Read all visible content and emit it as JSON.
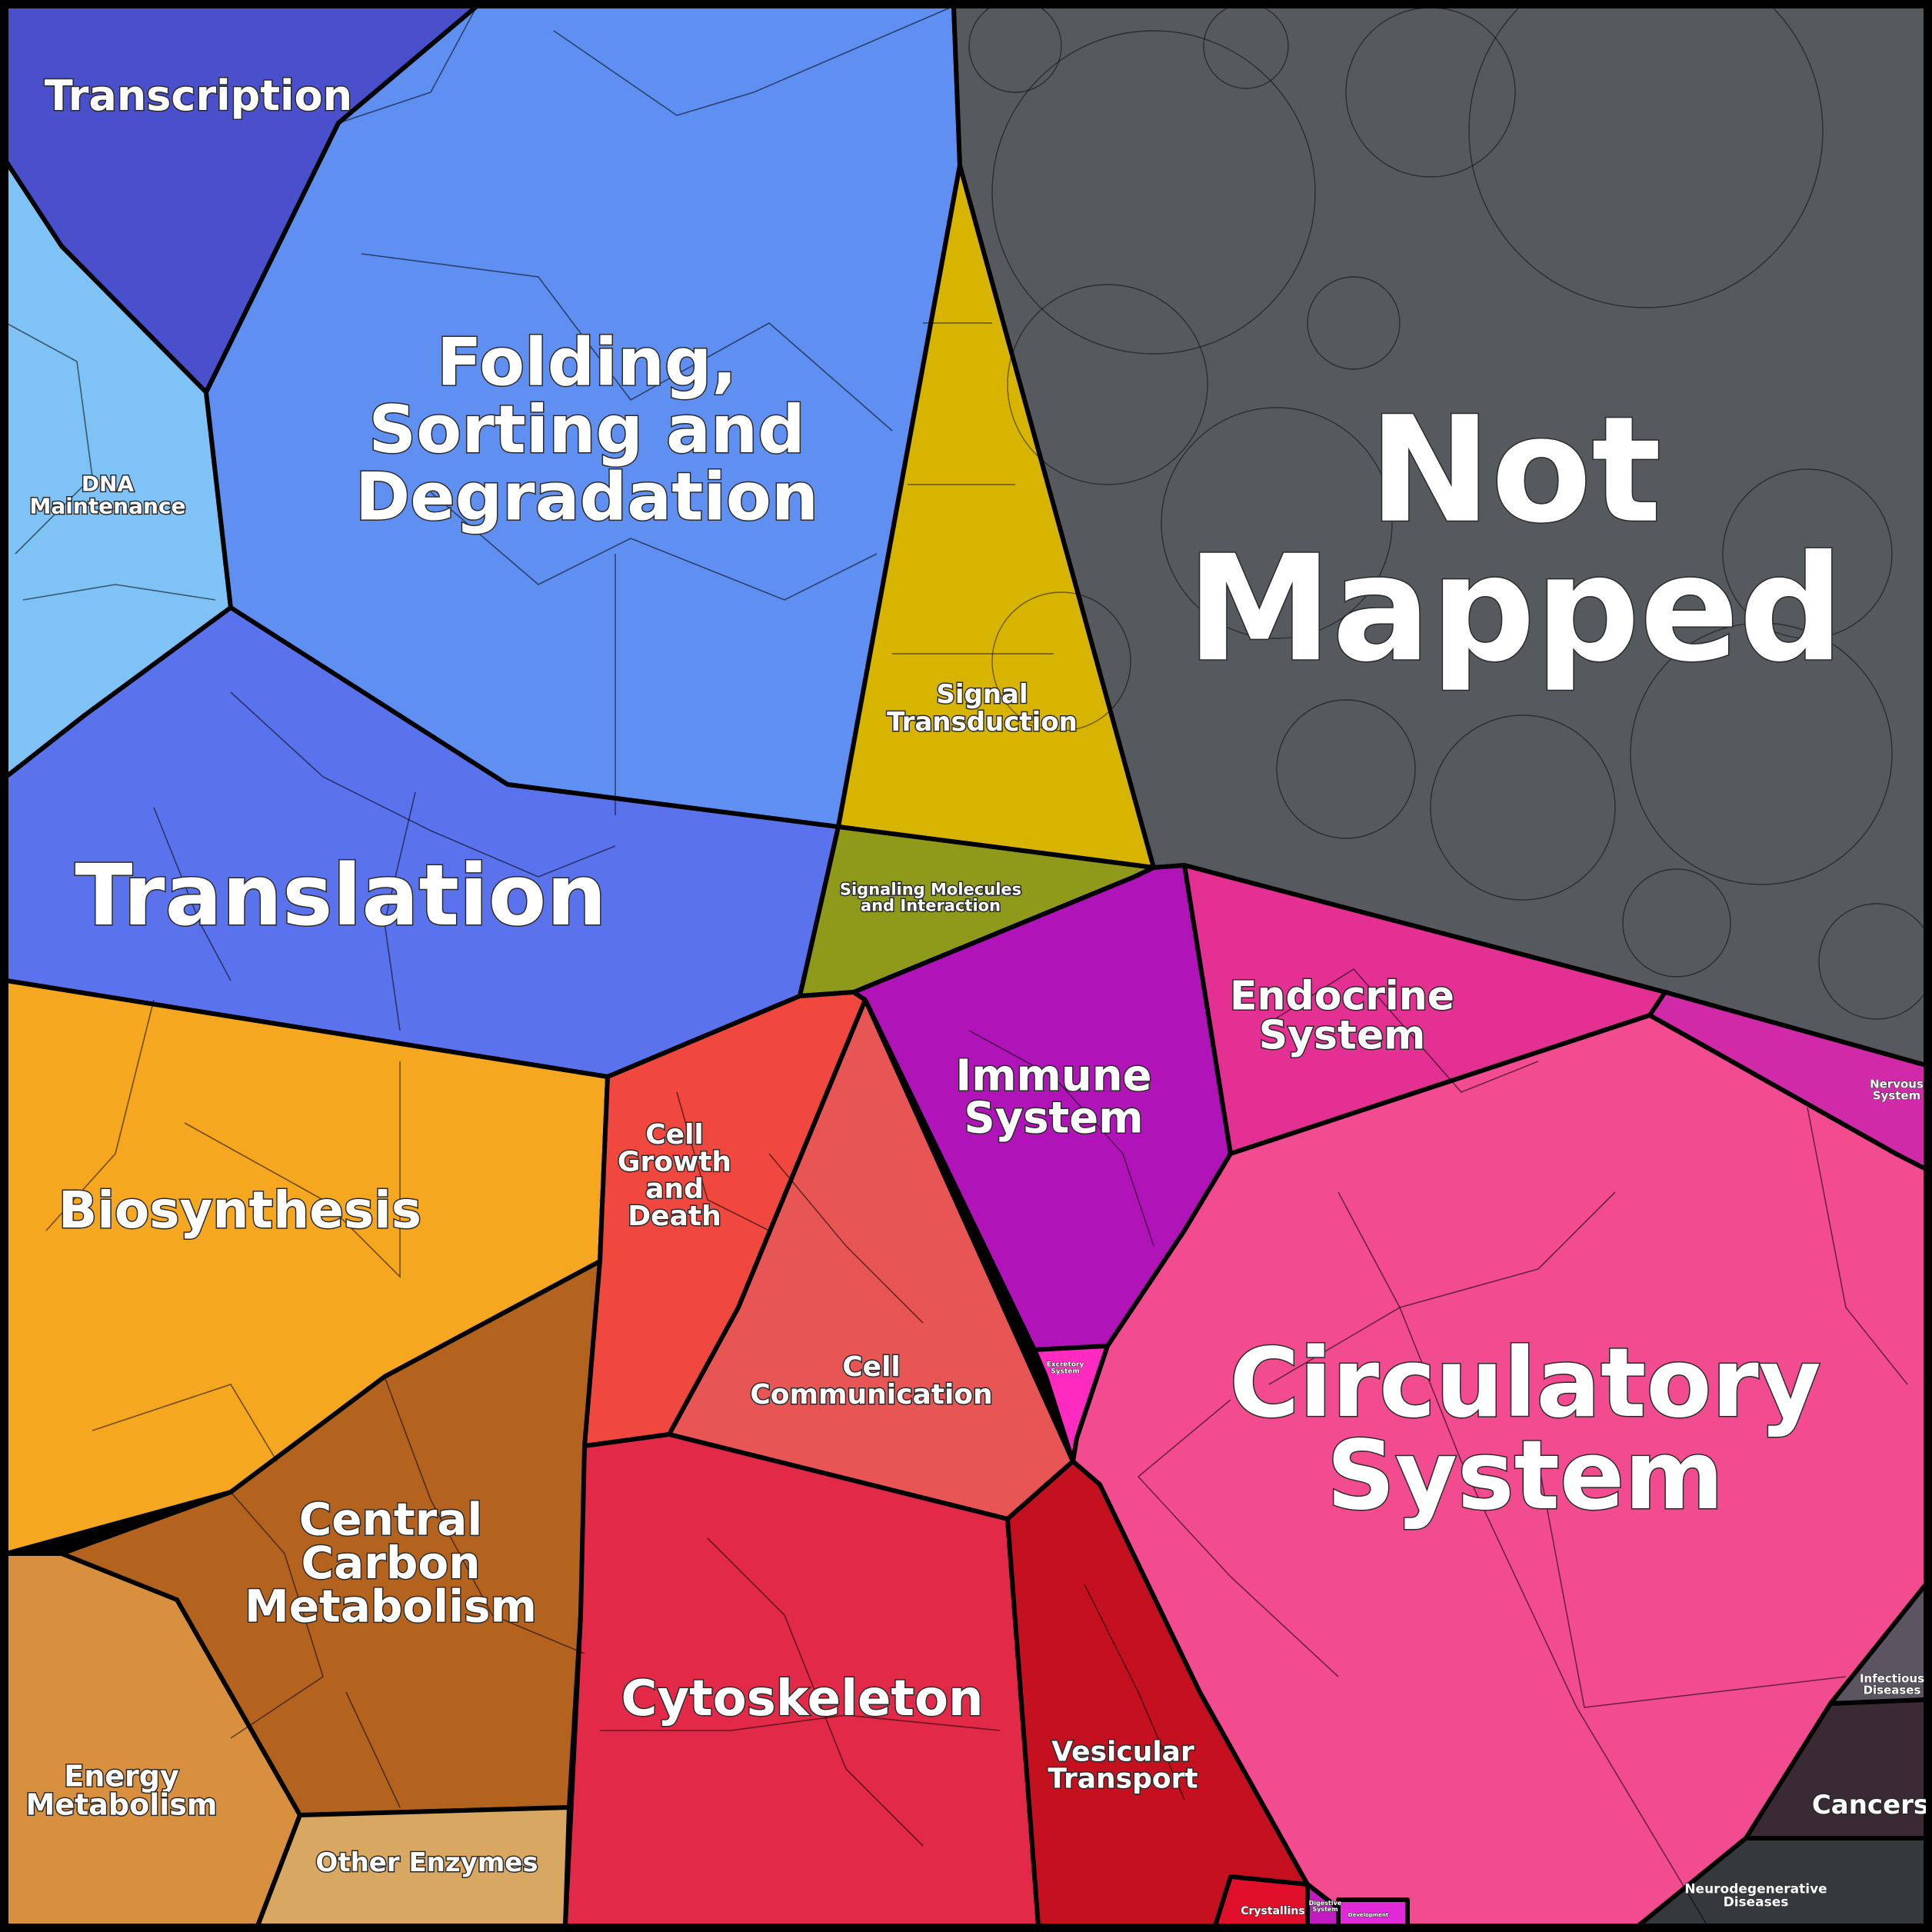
{
  "regions": {
    "transcription": {
      "label": [
        "Transcription"
      ],
      "color": "#4a4fcc"
    },
    "folding": {
      "label": [
        "Folding,",
        "Sorting and",
        "Degradation"
      ],
      "color": "#5f8ff0"
    },
    "dna_maintenance": {
      "label": [
        "DNA",
        "Maintenance"
      ],
      "color": "#7fc2f5"
    },
    "translation": {
      "label": [
        "Translation"
      ],
      "color": "#5a72ec"
    },
    "signal_transduction": {
      "label": [
        "Signal",
        "Transduction"
      ],
      "color": "#d6b400"
    },
    "signaling_molecules": {
      "label": [
        "Signaling Molecules",
        "and Interaction"
      ],
      "color": "#8f9a1a"
    },
    "not_mapped": {
      "label": [
        "Not",
        "Mapped"
      ],
      "color": "#565a5f"
    },
    "biosynthesis": {
      "label": [
        "Biosynthesis"
      ],
      "color": "#f5a71f"
    },
    "central_carbon": {
      "label": [
        "Central",
        "Carbon",
        "Metabolism"
      ],
      "color": "#b4631f"
    },
    "energy_metabolism": {
      "label": [
        "Energy",
        "Metabolism"
      ],
      "color": "#d88f3e"
    },
    "other_enzymes": {
      "label": [
        "Other Enzymes"
      ],
      "color": "#d8a862"
    },
    "cell_growth": {
      "label": [
        "Cell",
        "Growth",
        "and",
        "Death"
      ],
      "color": "#f0473e"
    },
    "cell_communication": {
      "label": [
        "Cell",
        "Communication"
      ],
      "color": "#e85555"
    },
    "cytoskeleton": {
      "label": [
        "Cytoskeleton"
      ],
      "color": "#e22a48"
    },
    "vesicular_transport": {
      "label": [
        "Vesicular",
        "Transport"
      ],
      "color": "#c4101f"
    },
    "immune_system": {
      "label": [
        "Immune",
        "System"
      ],
      "color": "#b013b8"
    },
    "endocrine_system": {
      "label": [
        "Endocrine",
        "System"
      ],
      "color": "#e33092"
    },
    "circulatory_system": {
      "label": [
        "Circulatory",
        "System"
      ],
      "color": "#f24b90"
    },
    "nervous_system": {
      "label": [
        "Nervous",
        "System"
      ],
      "color": "#d02aa8"
    },
    "excretory_system": {
      "label": [
        "Excretory",
        "System"
      ],
      "color": "#ff2ac0"
    },
    "infectious_diseases": {
      "label": [
        "Infectious",
        "Diseases"
      ],
      "color": "#5a5560"
    },
    "cancers": {
      "label": [
        "Cancers"
      ],
      "color": "#3a2a34"
    },
    "neurodegenerative": {
      "label": [
        "Neurodegenerative",
        "Diseases"
      ],
      "color": "#35393c"
    },
    "crystallins": {
      "label": [
        "Crystallins"
      ],
      "color": "#e0102a"
    },
    "digestive_system": {
      "label": [
        "Digestive",
        "System"
      ],
      "color": "#c01cc0"
    },
    "development": {
      "label": [
        "Development"
      ],
      "color": "#e02ad8"
    }
  }
}
